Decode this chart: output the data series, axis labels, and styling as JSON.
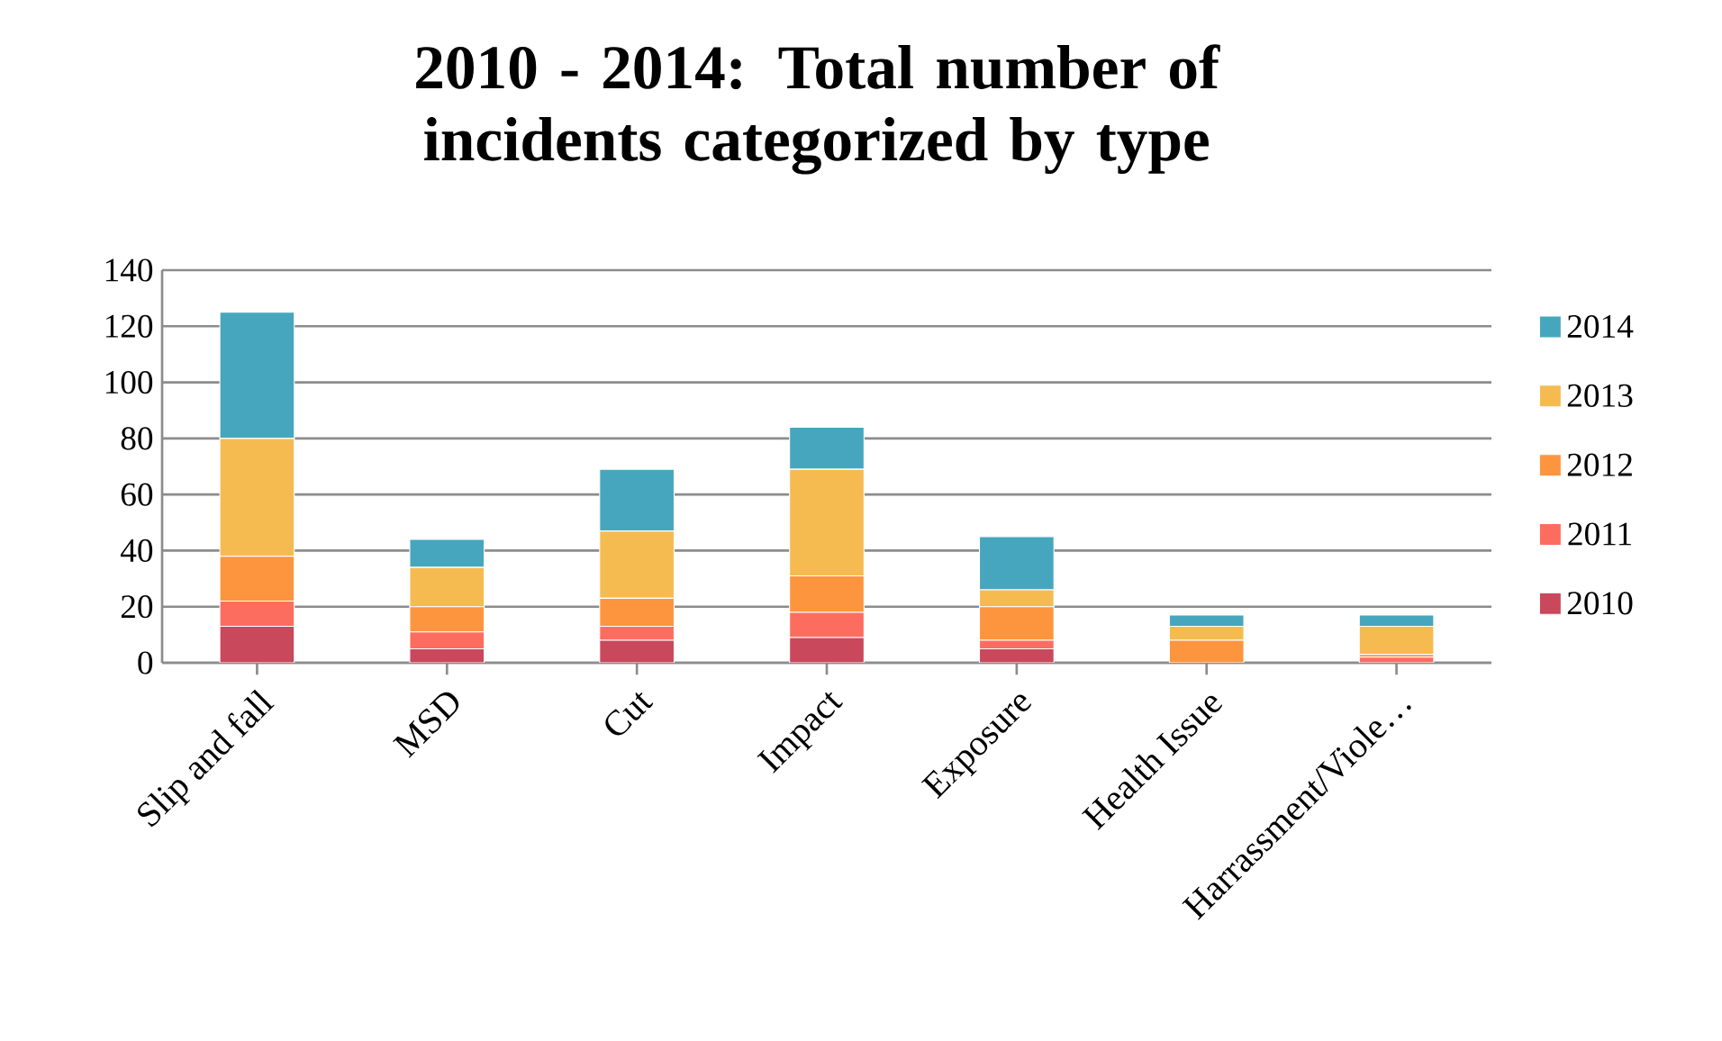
{
  "chart_data": {
    "type": "bar",
    "stacked": true,
    "title": "2010 - 2014: Total number of incidents categorized by type",
    "categories": [
      "Slip and fall",
      "MSD",
      "Cut",
      "Impact",
      "Exposure",
      "Health Issue",
      "Harrassment/Viole…"
    ],
    "series": [
      {
        "name": "2010",
        "color": "#c9485b",
        "values": [
          13,
          5,
          8,
          9,
          5,
          0,
          0
        ]
      },
      {
        "name": "2011",
        "color": "#fd6d5f",
        "values": [
          9,
          6,
          5,
          9,
          3,
          0,
          2
        ]
      },
      {
        "name": "2012",
        "color": "#fd953f",
        "values": [
          16,
          9,
          10,
          13,
          12,
          8,
          1
        ]
      },
      {
        "name": "2013",
        "color": "#f5bb51",
        "values": [
          42,
          14,
          24,
          38,
          6,
          5,
          10
        ]
      },
      {
        "name": "2014",
        "color": "#46a6be",
        "values": [
          45,
          10,
          22,
          15,
          19,
          4,
          4
        ]
      }
    ],
    "ylim": [
      0,
      140
    ],
    "yticks": [
      0,
      20,
      40,
      60,
      80,
      100,
      120,
      140
    ],
    "grid": "y",
    "legend": "right"
  }
}
